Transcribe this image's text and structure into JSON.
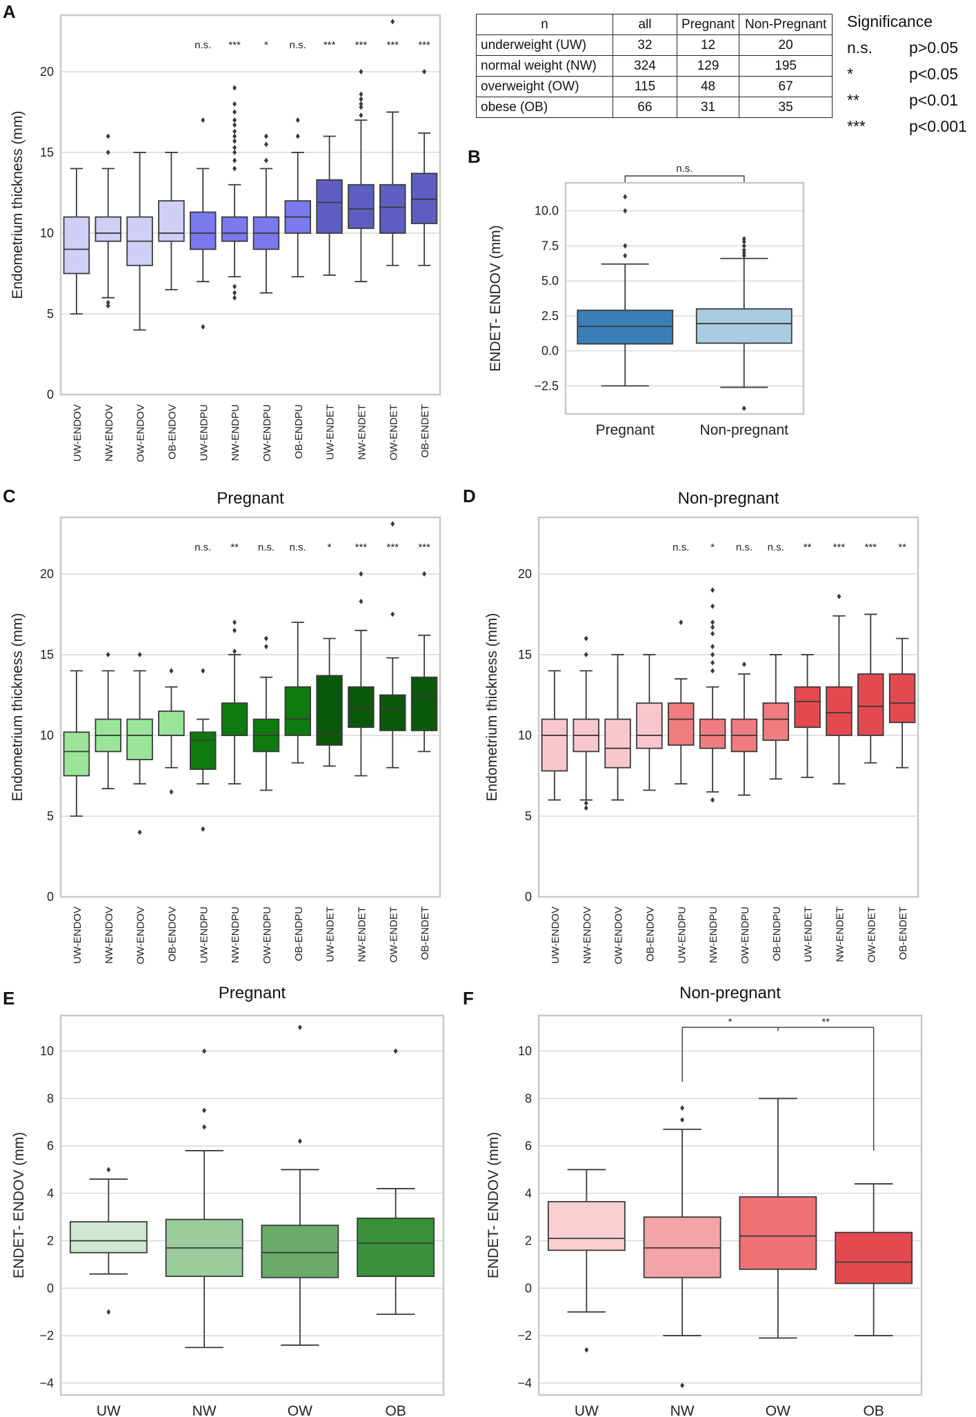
{
  "panel_letters": [
    "A",
    "B",
    "C",
    "D",
    "E",
    "F"
  ],
  "table": {
    "headers": [
      "n",
      "all",
      "Pregnant",
      "Non-Pregnant"
    ],
    "rows": [
      [
        "underweight (UW)",
        "32",
        "12",
        "20"
      ],
      [
        "normal weight (NW)",
        "324",
        "129",
        "195"
      ],
      [
        "overweight (OW)",
        "115",
        "48",
        "67"
      ],
      [
        "obese (OB)",
        "66",
        "31",
        "35"
      ]
    ]
  },
  "significance": {
    "title": "Significance",
    "rows": [
      [
        "n.s.",
        "p>0.05"
      ],
      [
        "*",
        "p<0.05"
      ],
      [
        "**",
        "p<0.01"
      ],
      [
        "***",
        "p<0.001"
      ]
    ]
  },
  "chart_data": [
    {
      "id": "A",
      "type": "box",
      "title": "",
      "xlabel": "",
      "ylabel": "Endometrium thickness (mm)",
      "ylim": [
        0,
        23.5
      ],
      "yticks": [
        0,
        5,
        10,
        15,
        20
      ],
      "categories": [
        "UW-ENDOV",
        "NW-ENDOV",
        "OW-ENDOV",
        "OB-ENDOV",
        "UW-ENDPU",
        "NW-ENDPU",
        "OW-ENDPU",
        "OB-ENDPU",
        "UW-ENDET",
        "NW-ENDET",
        "OW-ENDET",
        "OB-ENDET"
      ],
      "colors": [
        "#cfcff7",
        "#cfcff7",
        "#cfcff7",
        "#cfcff7",
        "#7a7aee",
        "#7a7aee",
        "#7a7aee",
        "#7a7aee",
        "#5e5ec2",
        "#5e5ec2",
        "#5e5ec2",
        "#5e5ec2"
      ],
      "boxes": [
        {
          "whislo": 5,
          "q1": 7.5,
          "med": 9,
          "q3": 11,
          "whishi": 14,
          "fliers": []
        },
        {
          "whislo": 6,
          "q1": 9.5,
          "med": 10,
          "q3": 11,
          "whishi": 14,
          "fliers": [
            5.5,
            5.7,
            15,
            16
          ]
        },
        {
          "whislo": 4,
          "q1": 8,
          "med": 9.5,
          "q3": 11,
          "whishi": 15,
          "fliers": []
        },
        {
          "whislo": 6.5,
          "q1": 9.5,
          "med": 10,
          "q3": 12,
          "whishi": 15,
          "fliers": []
        },
        {
          "whislo": 7,
          "q1": 9,
          "med": 10,
          "q3": 11.3,
          "whishi": 14,
          "fliers": [
            4.2,
            17
          ]
        },
        {
          "whislo": 7.3,
          "q1": 9.5,
          "med": 10,
          "q3": 11,
          "whishi": 13,
          "fliers": [
            6,
            6.3,
            6.7,
            14,
            14.5,
            15,
            15.3,
            15.7,
            16,
            16.3,
            16.7,
            17,
            17.5,
            18,
            19
          ]
        },
        {
          "whislo": 6.3,
          "q1": 9,
          "med": 10,
          "q3": 11,
          "whishi": 14,
          "fliers": [
            14.5,
            15.5,
            16
          ]
        },
        {
          "whislo": 7.3,
          "q1": 10,
          "med": 11,
          "q3": 12,
          "whishi": 15,
          "fliers": [
            16,
            17
          ]
        },
        {
          "whislo": 7.4,
          "q1": 10,
          "med": 11.9,
          "q3": 13.3,
          "whishi": 16,
          "fliers": []
        },
        {
          "whislo": 7,
          "q1": 10.3,
          "med": 11.5,
          "q3": 13,
          "whishi": 17,
          "fliers": [
            17.3,
            17.8,
            18,
            18.3,
            18.6,
            20
          ]
        },
        {
          "whislo": 8,
          "q1": 10,
          "med": 11.6,
          "q3": 13,
          "whishi": 17.5,
          "fliers": [
            23.1
          ]
        },
        {
          "whislo": 8,
          "q1": 10.6,
          "med": 12.1,
          "q3": 13.7,
          "whishi": 16.2,
          "fliers": [
            20
          ]
        }
      ],
      "annotations": [
        "",
        "",
        "",
        "",
        "n.s.",
        "***",
        "*",
        "n.s.",
        "***",
        "***",
        "***",
        "***"
      ]
    },
    {
      "id": "B",
      "type": "box",
      "title": "",
      "xlabel": "",
      "ylabel": "ENDET- ENDOV (mm)",
      "ylim": [
        -4.5,
        12
      ],
      "yticks": [
        -2.5,
        0.0,
        2.5,
        5.0,
        7.5,
        10.0
      ],
      "categories": [
        "Pregnant",
        "Non-pregnant"
      ],
      "colors": [
        "#3c7fb7",
        "#a8cde1"
      ],
      "boxes": [
        {
          "whislo": -2.5,
          "q1": 0.5,
          "med": 1.75,
          "q3": 2.9,
          "whishi": 6.2,
          "fliers": [
            6.8,
            7.5,
            10,
            11
          ]
        },
        {
          "whislo": -2.6,
          "q1": 0.55,
          "med": 1.95,
          "q3": 3,
          "whishi": 6.6,
          "fliers": [
            -4.1,
            6.8,
            7,
            7.2,
            7.5,
            7.8,
            8
          ]
        }
      ],
      "bracket": {
        "from": 0,
        "to": 1,
        "label": "n.s."
      }
    },
    {
      "id": "C",
      "type": "box",
      "title": "Pregnant",
      "xlabel": "",
      "ylabel": "Endometrium thickness (mm)",
      "ylim": [
        0,
        23.5
      ],
      "yticks": [
        0,
        5,
        10,
        15,
        20
      ],
      "categories": [
        "UW-ENDOV",
        "NW-ENDOV",
        "OW-ENDOV",
        "OB-ENDOV",
        "UW-ENDPU",
        "NW-ENDPU",
        "OW-ENDPU",
        "OB-ENDPU",
        "UW-ENDET",
        "NW-ENDET",
        "OW-ENDET",
        "OB-ENDET"
      ],
      "colors": [
        "#9ae59a",
        "#9ae59a",
        "#9ae59a",
        "#9ae59a",
        "#0f7a0f",
        "#0f7a0f",
        "#0f7a0f",
        "#0f7a0f",
        "#0b570b",
        "#0b570b",
        "#0b570b",
        "#0b570b"
      ],
      "boxes": [
        {
          "whislo": 5,
          "q1": 7.5,
          "med": 9,
          "q3": 10.2,
          "whishi": 14,
          "fliers": []
        },
        {
          "whislo": 6.7,
          "q1": 9,
          "med": 10,
          "q3": 11,
          "whishi": 14,
          "fliers": [
            15
          ]
        },
        {
          "whislo": 7,
          "q1": 8.5,
          "med": 10,
          "q3": 11,
          "whishi": 14,
          "fliers": [
            4,
            15
          ]
        },
        {
          "whislo": 8,
          "q1": 10,
          "med": 10,
          "q3": 11.5,
          "whishi": 13,
          "fliers": [
            6.5,
            14
          ]
        },
        {
          "whislo": 7,
          "q1": 7.9,
          "med": 9.7,
          "q3": 10.2,
          "whishi": 11,
          "fliers": [
            4.2,
            14
          ]
        },
        {
          "whislo": 7,
          "q1": 10,
          "med": 10,
          "q3": 12,
          "whishi": 15,
          "fliers": [
            15.2,
            16.5,
            17
          ]
        },
        {
          "whislo": 6.6,
          "q1": 9,
          "med": 10,
          "q3": 11,
          "whishi": 13.6,
          "fliers": [
            15.5,
            16
          ]
        },
        {
          "whislo": 8.3,
          "q1": 10,
          "med": 11,
          "q3": 13,
          "whishi": 17,
          "fliers": []
        },
        {
          "whislo": 8.1,
          "q1": 9.4,
          "med": 10.1,
          "q3": 13.7,
          "whishi": 16,
          "fliers": []
        },
        {
          "whislo": 7.5,
          "q1": 10.5,
          "med": 11.7,
          "q3": 13,
          "whishi": 16.5,
          "fliers": [
            18.3,
            20
          ]
        },
        {
          "whislo": 8,
          "q1": 10.3,
          "med": 11.6,
          "q3": 12.5,
          "whishi": 14.8,
          "fliers": [
            17.5,
            23.1
          ]
        },
        {
          "whislo": 9,
          "q1": 10.3,
          "med": 12.4,
          "q3": 13.6,
          "whishi": 16.2,
          "fliers": [
            20
          ]
        }
      ],
      "annotations": [
        "",
        "",
        "",
        "",
        "n.s.",
        "**",
        "n.s.",
        "n.s.",
        "*",
        "***",
        "***",
        "***"
      ]
    },
    {
      "id": "D",
      "type": "box",
      "title": "Non-pregnant",
      "xlabel": "",
      "ylabel": "Endometrium thickness (mm)",
      "ylim": [
        0,
        23.5
      ],
      "yticks": [
        0,
        5,
        10,
        15,
        20
      ],
      "categories": [
        "UW-ENDOV",
        "NW-ENDOV",
        "OW-ENDOV",
        "OB-ENDOV",
        "UW-ENDPU",
        "NW-ENDPU",
        "OW-ENDPU",
        "OB-ENDPU",
        "UW-ENDET",
        "NW-ENDET",
        "OW-ENDET",
        "OB-ENDET"
      ],
      "colors": [
        "#f8c7cd",
        "#f8c7cd",
        "#f8c7cd",
        "#f8c7cd",
        "#f07c80",
        "#f07c80",
        "#f07c80",
        "#f07c80",
        "#e34a4f",
        "#e34a4f",
        "#e34a4f",
        "#e34a4f"
      ],
      "boxes": [
        {
          "whislo": 6,
          "q1": 7.8,
          "med": 10,
          "q3": 11,
          "whishi": 14,
          "fliers": []
        },
        {
          "whislo": 6,
          "q1": 9,
          "med": 10,
          "q3": 11,
          "whishi": 14,
          "fliers": [
            5.5,
            5.8,
            15,
            16
          ]
        },
        {
          "whislo": 6,
          "q1": 8,
          "med": 9.2,
          "q3": 11,
          "whishi": 15,
          "fliers": []
        },
        {
          "whislo": 6.6,
          "q1": 9.2,
          "med": 10,
          "q3": 12,
          "whishi": 15,
          "fliers": []
        },
        {
          "whislo": 7,
          "q1": 9.4,
          "med": 11,
          "q3": 12,
          "whishi": 13.5,
          "fliers": [
            17
          ]
        },
        {
          "whislo": 6.5,
          "q1": 9.2,
          "med": 10,
          "q3": 11,
          "whishi": 13,
          "fliers": [
            6,
            14,
            14.5,
            15,
            15.5,
            16.3,
            16.7,
            17,
            18,
            19
          ]
        },
        {
          "whislo": 6.3,
          "q1": 9,
          "med": 10,
          "q3": 11,
          "whishi": 13.8,
          "fliers": [
            14.4
          ]
        },
        {
          "whislo": 7.3,
          "q1": 9.7,
          "med": 11,
          "q3": 12,
          "whishi": 15,
          "fliers": []
        },
        {
          "whislo": 7.4,
          "q1": 10.5,
          "med": 12.1,
          "q3": 13,
          "whishi": 15,
          "fliers": []
        },
        {
          "whislo": 7,
          "q1": 10,
          "med": 11.4,
          "q3": 13,
          "whishi": 17.4,
          "fliers": [
            18.6
          ]
        },
        {
          "whislo": 8.3,
          "q1": 10,
          "med": 11.8,
          "q3": 13.8,
          "whishi": 17.5,
          "fliers": []
        },
        {
          "whislo": 8,
          "q1": 10.8,
          "med": 12,
          "q3": 13.8,
          "whishi": 16,
          "fliers": []
        }
      ],
      "annotations": [
        "",
        "",
        "",
        "",
        "n.s.",
        "*",
        "n.s.",
        "n.s.",
        "**",
        "***",
        "***",
        "**"
      ]
    },
    {
      "id": "E",
      "type": "box",
      "title": "Pregnant",
      "xlabel": "",
      "ylabel": "ENDET- ENDOV (mm)",
      "ylim": [
        -4.5,
        11.5
      ],
      "yticks": [
        -4,
        -2,
        0,
        2,
        4,
        6,
        8,
        10
      ],
      "categories": [
        "UW",
        "NW",
        "OW",
        "OB"
      ],
      "colors": [
        "#cfe8cf",
        "#9ccc9c",
        "#6aaa6a",
        "#3b8f3b"
      ],
      "boxes": [
        {
          "whislo": 0.6,
          "q1": 1.5,
          "med": 2,
          "q3": 2.8,
          "whishi": 4.6,
          "fliers": [
            -1,
            5
          ]
        },
        {
          "whislo": -2.5,
          "q1": 0.5,
          "med": 1.7,
          "q3": 2.9,
          "whishi": 5.8,
          "fliers": [
            6.8,
            7.5,
            10
          ]
        },
        {
          "whislo": -2.4,
          "q1": 0.45,
          "med": 1.5,
          "q3": 2.65,
          "whishi": 5,
          "fliers": [
            6.2,
            11
          ]
        },
        {
          "whislo": -1.1,
          "q1": 0.5,
          "med": 1.9,
          "q3": 2.95,
          "whishi": 4.2,
          "fliers": [
            10
          ]
        }
      ]
    },
    {
      "id": "F",
      "type": "box",
      "title": "Non-pregnant",
      "xlabel": "",
      "ylabel": "ENDET- ENDOV (mm)",
      "ylim": [
        -4.5,
        11.5
      ],
      "yticks": [
        -4,
        -2,
        0,
        2,
        4,
        6,
        8,
        10
      ],
      "categories": [
        "UW",
        "NW",
        "OW",
        "OB"
      ],
      "colors": [
        "#f9cfd1",
        "#f4a3a7",
        "#ee7275",
        "#e34a4f"
      ],
      "boxes": [
        {
          "whislo": -1,
          "q1": 1.6,
          "med": 2.1,
          "q3": 3.65,
          "whishi": 5,
          "fliers": [
            -2.6
          ]
        },
        {
          "whislo": -2,
          "q1": 0.45,
          "med": 1.7,
          "q3": 3,
          "whishi": 6.7,
          "fliers": [
            -4.1,
            7.1,
            7.6
          ]
        },
        {
          "whislo": -2.1,
          "q1": 0.8,
          "med": 2.2,
          "q3": 3.85,
          "whishi": 8,
          "fliers": []
        },
        {
          "whislo": -2,
          "q1": 0.2,
          "med": 1.1,
          "q3": 2.35,
          "whishi": 4.4,
          "fliers": []
        }
      ],
      "brackets": [
        {
          "from": 1,
          "to": 2,
          "label": "*"
        },
        {
          "from": 2,
          "to": 3,
          "label": "**"
        }
      ]
    }
  ]
}
